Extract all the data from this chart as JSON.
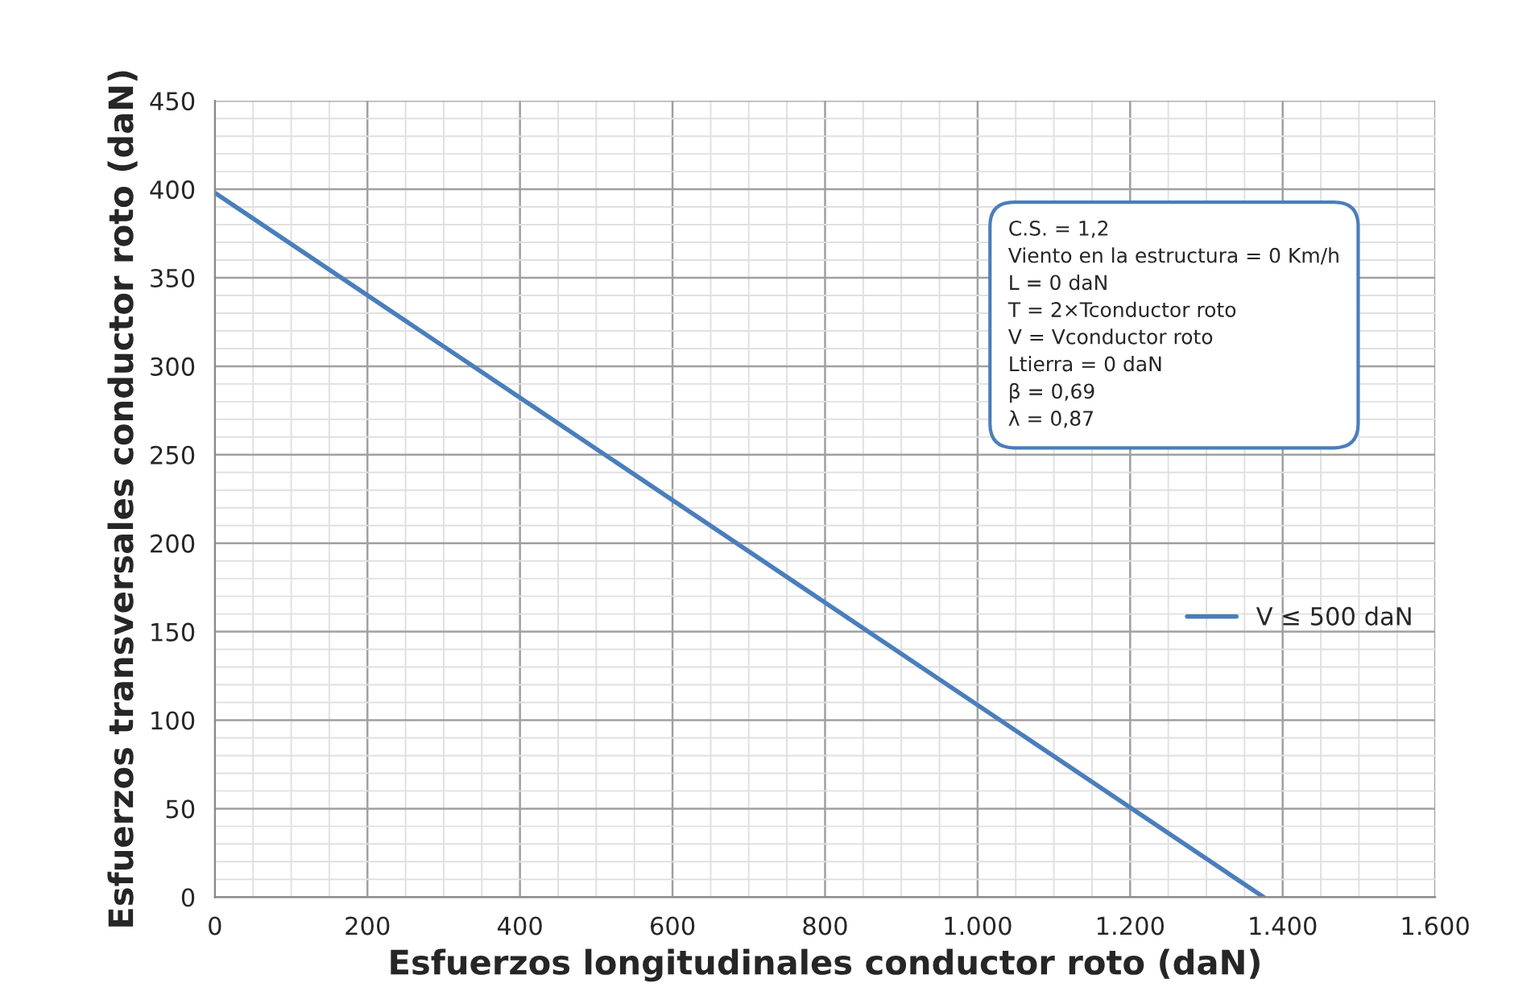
{
  "chart_data": {
    "type": "line",
    "xlabel": "Esfuerzos longitudinales conductor roto (daN)",
    "ylabel": "Esfuerzos transversales conductor roto (daN)",
    "x": [
      0,
      1375
    ],
    "series": [
      {
        "name": "V ≤ 500 daN",
        "color": "#4a7ebb",
        "values": [
          398,
          0
        ]
      }
    ],
    "xlim": [
      0,
      1600
    ],
    "ylim": [
      0,
      450
    ],
    "xticks": [
      0,
      200,
      400,
      600,
      800,
      {
        "value": 1000,
        "label": "1.000"
      },
      {
        "value": 1200,
        "label": "1.200"
      },
      {
        "value": 1400,
        "label": "1.400"
      },
      {
        "value": 1600,
        "label": "1.600"
      }
    ],
    "yticks": [
      0,
      50,
      100,
      150,
      200,
      250,
      300,
      350,
      400,
      450
    ],
    "grid": true,
    "legend": "right",
    "marker": "none",
    "line_style": "solid",
    "annotations": [
      "C.S. = 1,2\nViento en la estructura = 0 Km/h\nL = 0 daN\nT = 2×Tconductor roto\nV = Vconductor roto\nLtierra = 0 daN\nβ = 0,69\nλ = 0,87"
    ]
  }
}
